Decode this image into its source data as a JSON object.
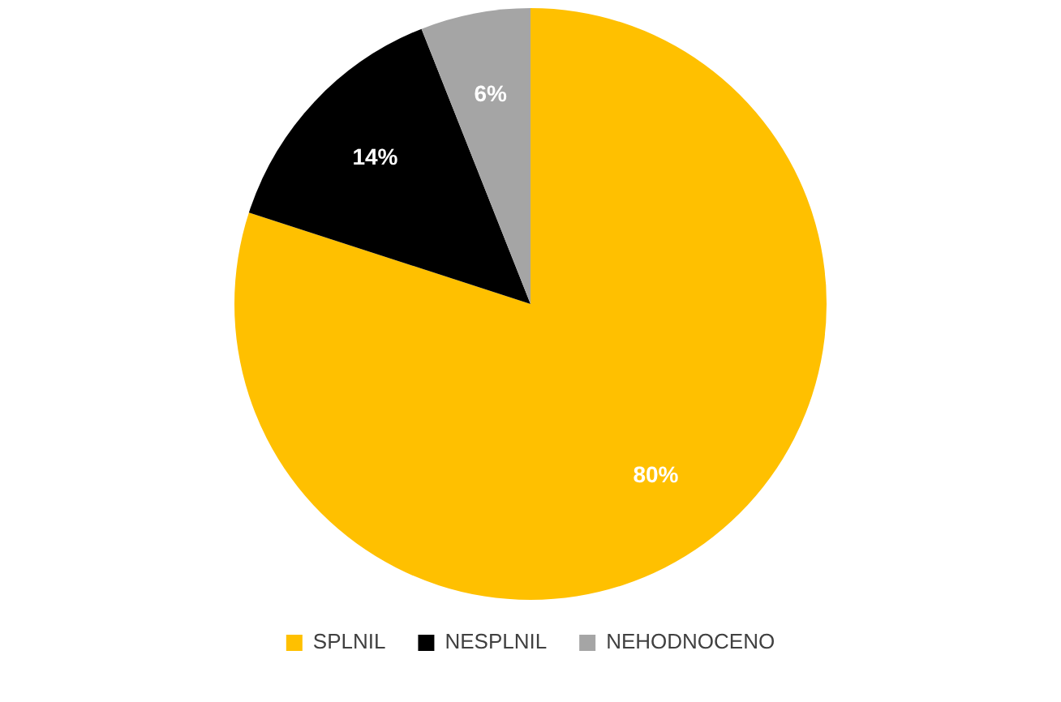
{
  "chart_data": {
    "type": "pie",
    "categories": [
      "SPLNIL",
      "NESPLNIL",
      "NEHODNOCENO"
    ],
    "values": [
      80,
      14,
      6
    ],
    "colors": [
      "#ffc000",
      "#000000",
      "#a5a5a5"
    ],
    "value_labels": [
      "80%",
      "14%",
      "6%"
    ],
    "legend": "bottom"
  }
}
